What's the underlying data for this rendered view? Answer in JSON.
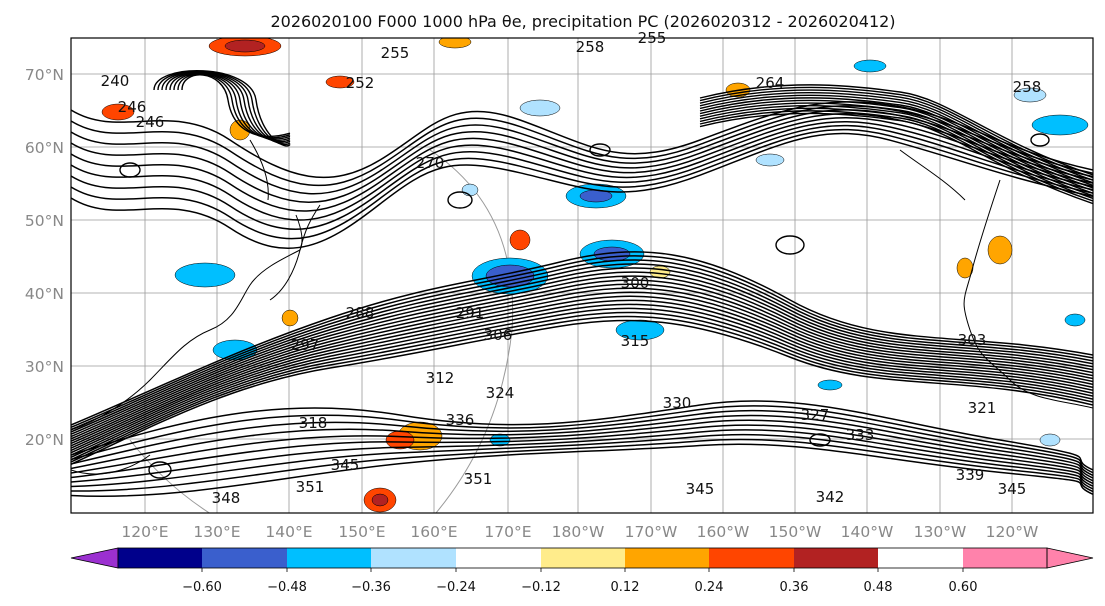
{
  "title": "2026020100 F000 1000 hPa θe, precipitation PC (2026020312 - 2026020412)",
  "map": {
    "lat_labels": [
      "70°N",
      "60°N",
      "50°N",
      "40°N",
      "30°N",
      "20°N"
    ],
    "lon_labels": [
      "120°E",
      "130°E",
      "140°E",
      "150°E",
      "160°E",
      "170°E",
      "180°W",
      "170°W",
      "160°W",
      "150°W",
      "140°W",
      "130°W",
      "120°W"
    ],
    "contour_labels": [
      "240",
      "246",
      "246",
      "252",
      "255",
      "258",
      "255",
      "264",
      "258",
      "270",
      "288",
      "291",
      "297",
      "300",
      "303",
      "306",
      "312",
      "315",
      "318",
      "321",
      "324",
      "327",
      "330",
      "333",
      "336",
      "339",
      "342",
      "345",
      "345",
      "345",
      "348",
      "351",
      "351"
    ]
  },
  "colorbar": {
    "colors": [
      "#9b30d0",
      "#00008b",
      "#3a5fcd",
      "#00bfff",
      "#b0e2ff",
      "#ffffff",
      "#ffec8b",
      "#ffa500",
      "#ff4500",
      "#b22222",
      "#ff82ab"
    ],
    "tick_labels": [
      "−0.60",
      "−0.48",
      "−0.36",
      "−0.24",
      "−0.12",
      "0.12",
      "0.24",
      "0.36",
      "0.48",
      "0.60"
    ]
  }
}
